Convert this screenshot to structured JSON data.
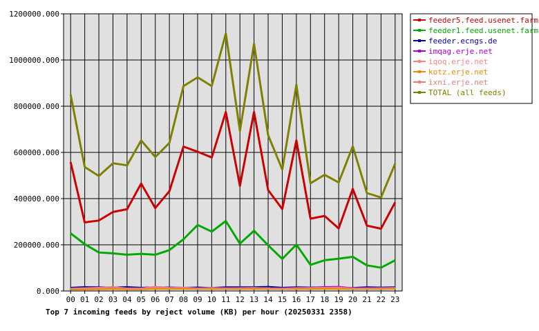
{
  "chart_data": {
    "type": "line",
    "title": "Top 7 incoming feeds by reject volume (KB) per hour (20250331 2358)",
    "categories": [
      "00",
      "01",
      "02",
      "03",
      "04",
      "05",
      "06",
      "07",
      "08",
      "09",
      "10",
      "11",
      "12",
      "13",
      "14",
      "15",
      "16",
      "17",
      "18",
      "19",
      "20",
      "21",
      "22",
      "23"
    ],
    "ylim": [
      0,
      1200000
    ],
    "yticks": [
      "0.000",
      "200000.000",
      "400000.000",
      "600000.000",
      "800000.000",
      "1000000.000",
      "1200000.000"
    ],
    "grid": true,
    "legend_position": "right",
    "plot_background": "#e0e0e0",
    "series": [
      {
        "name": "feeder5.feed.usenet.farm",
        "color": "#cc0000",
        "values": [
          558000,
          297000,
          305000,
          342000,
          354000,
          465000,
          359000,
          432000,
          625000,
          603000,
          578000,
          775000,
          455000,
          775000,
          437000,
          355000,
          652000,
          313000,
          325000,
          271000,
          442000,
          283000,
          270000,
          384000
        ]
      },
      {
        "name": "feeder1.feed.usenet.farm",
        "color": "#00aa00",
        "values": [
          250000,
          203000,
          167000,
          163000,
          157000,
          161000,
          157000,
          177000,
          224000,
          286000,
          257000,
          303000,
          205000,
          261000,
          198000,
          139000,
          201000,
          113000,
          133000,
          140000,
          148000,
          111000,
          101000,
          133000
        ]
      },
      {
        "name": "feeder.ecngs.de",
        "color": "#0000aa",
        "values": [
          15000,
          18000,
          17000,
          16000,
          18000,
          15000,
          17000,
          16000,
          15000,
          16000,
          14000,
          17000,
          17000,
          17000,
          19000,
          15000,
          17000,
          16000,
          17000,
          15000,
          14000,
          17000,
          16000,
          17000
        ]
      },
      {
        "name": "imqag.erje.net",
        "color": "#aa00cc",
        "values": [
          10000,
          11000,
          12000,
          12000,
          11000,
          12000,
          11000,
          11000,
          12000,
          12000,
          13000,
          13000,
          12000,
          11000,
          12000,
          12000,
          14000,
          14000,
          18000,
          19000,
          13000,
          13000,
          13000,
          12000
        ]
      },
      {
        "name": "iqoq.erje.net",
        "color": "#ff7f7f",
        "values": [
          8000,
          9000,
          10000,
          11000,
          9000,
          10000,
          14000,
          12000,
          12000,
          10000,
          13000,
          11000,
          10000,
          12000,
          11000,
          10000,
          11000,
          12000,
          12000,
          11000,
          10000,
          10000,
          11000,
          12000
        ]
      },
      {
        "name": "kotz.erje.net",
        "color": "#ee8800",
        "values": [
          6000,
          6000,
          7000,
          8000,
          7000,
          7000,
          9000,
          8000,
          9000,
          8000,
          8000,
          8000,
          8000,
          9000,
          8000,
          8000,
          8000,
          8000,
          9000,
          8000,
          8000,
          8000,
          8000,
          9000
        ]
      },
      {
        "name": "ixni.erje.net",
        "color": "#e08080",
        "values": [
          11000,
          13000,
          15000,
          18000,
          12000,
          12000,
          19000,
          14000,
          16000,
          12000,
          14000,
          12000,
          13000,
          14000,
          12000,
          11000,
          13000,
          14000,
          15000,
          16000,
          12000,
          12000,
          13000,
          14000
        ]
      },
      {
        "name": "TOTAL (all feeds)",
        "color": "#808000",
        "values": [
          850000,
          537000,
          498000,
          553000,
          544000,
          652000,
          580000,
          641000,
          887000,
          925000,
          887000,
          1115000,
          693000,
          1070000,
          675000,
          526000,
          893000,
          466000,
          503000,
          470000,
          626000,
          424000,
          405000,
          551000
        ]
      }
    ]
  }
}
